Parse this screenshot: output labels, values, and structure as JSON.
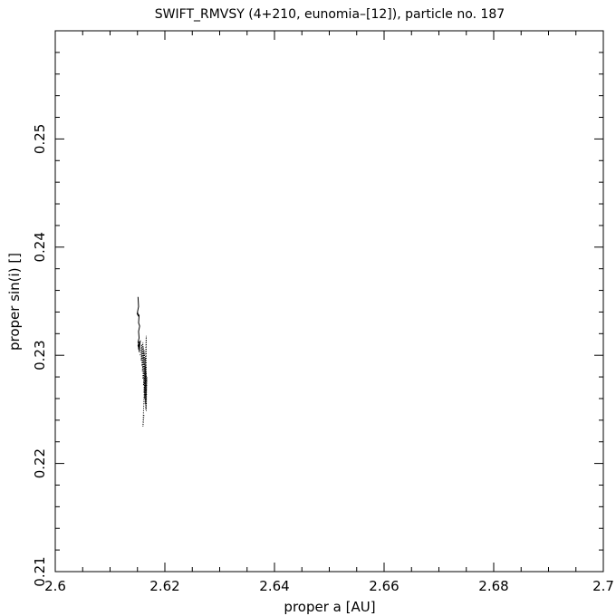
{
  "chart_data": {
    "type": "line",
    "title": "SWIFT_RMVSY (4+210, eunomia–[12]), particle no. 187",
    "xlabel": "proper a [AU]",
    "ylabel": "proper sin(i) []",
    "xlim": [
      2.6,
      2.7
    ],
    "ylim": [
      0.21,
      0.26
    ],
    "xticks": [
      2.6,
      2.62,
      2.64,
      2.66,
      2.68,
      2.7
    ],
    "xtick_labels": [
      "2.6",
      "2.62",
      "2.64",
      "2.66",
      "2.68",
      "2.7"
    ],
    "yticks": [
      0.21,
      0.22,
      0.23,
      0.24,
      0.25
    ],
    "ytick_labels": [
      "0.21",
      "0.22",
      "0.23",
      "0.24",
      "0.25"
    ],
    "grid": false,
    "series": [
      {
        "style": "solid",
        "x": [
          2.6151,
          2.6152,
          2.615,
          2.6152,
          2.6149,
          2.6153,
          2.6152,
          2.6154,
          2.6152,
          2.6153,
          2.6151,
          2.6153,
          2.6152,
          2.6154,
          2.6151,
          2.6153,
          2.6155,
          2.6153
        ],
        "y": [
          0.2354,
          0.2345,
          0.234,
          0.2336,
          0.2339,
          0.2337,
          0.233,
          0.2327,
          0.2322,
          0.2316,
          0.2312,
          0.231,
          0.2306,
          0.2304,
          0.2309,
          0.2312,
          0.2313,
          0.2303
        ]
      },
      {
        "style": "dotted",
        "x": [
          2.6155,
          2.6158,
          2.6157,
          2.616,
          2.6158,
          2.6161,
          2.6159,
          2.6162,
          2.616,
          2.6163,
          2.6161,
          2.6164,
          2.6162,
          2.6165,
          2.6163,
          2.6165,
          2.6164,
          2.6166,
          2.6165,
          2.6167,
          2.6166,
          2.6166,
          2.616,
          2.6162
        ],
        "y": [
          0.23,
          0.231,
          0.2295,
          0.2312,
          0.229,
          0.2308,
          0.2285,
          0.2305,
          0.2278,
          0.2302,
          0.2272,
          0.2298,
          0.2266,
          0.2294,
          0.226,
          0.229,
          0.2255,
          0.2285,
          0.225,
          0.228,
          0.2248,
          0.2318,
          0.2234,
          0.2246
        ]
      }
    ]
  }
}
